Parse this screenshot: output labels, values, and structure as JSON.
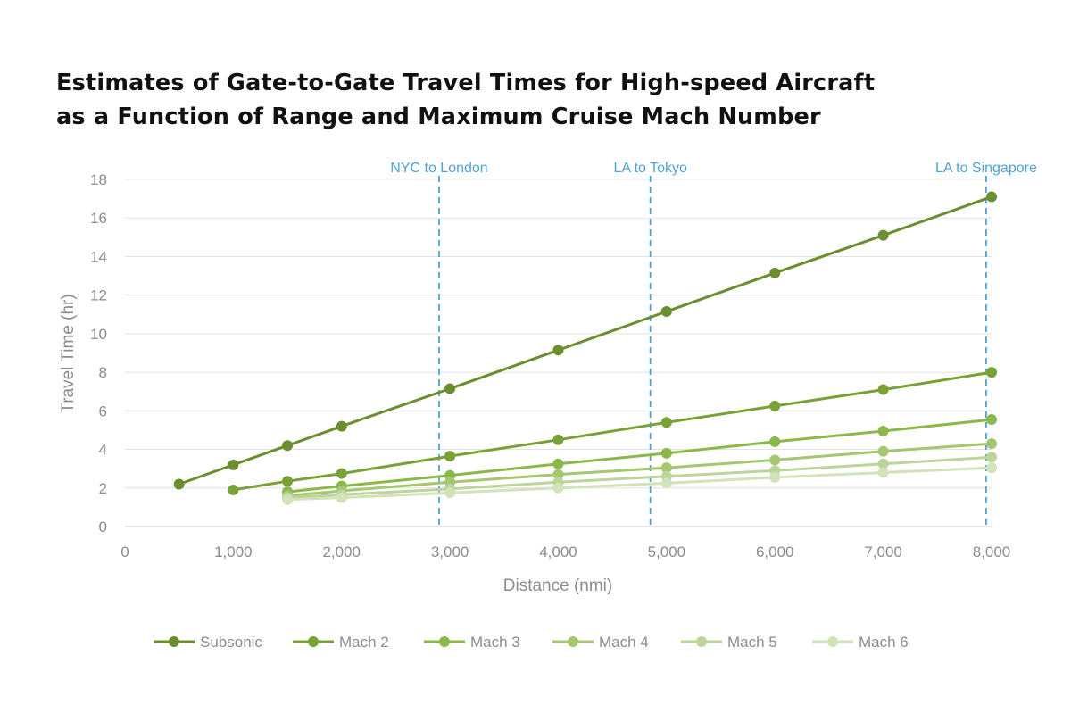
{
  "chart_data": {
    "type": "line",
    "title": "Estimates of Gate-to-Gate Travel Times for High-speed Aircraft as a Function of Range and Maximum Cruise Mach Number",
    "title_lines": [
      "Estimates of Gate-to-Gate Travel Times for High-speed Aircraft",
      "as a Function of Range and Maximum Cruise Mach Number"
    ],
    "xlabel": "Distance (nmi)",
    "ylabel": "Travel Time (hr)",
    "xlim": [
      0,
      8000
    ],
    "ylim": [
      0,
      18
    ],
    "x_ticks": [
      0,
      1000,
      2000,
      3000,
      4000,
      5000,
      6000,
      7000,
      8000
    ],
    "x_tick_labels": [
      "0",
      "1,000",
      "2,000",
      "3,000",
      "4,000",
      "5,000",
      "6,000",
      "7,000",
      "8,000"
    ],
    "y_ticks": [
      0,
      2,
      4,
      6,
      8,
      10,
      12,
      14,
      16,
      18
    ],
    "y_tick_labels": [
      "0",
      "2",
      "4",
      "6",
      "8",
      "10",
      "12",
      "14",
      "16",
      "18"
    ],
    "grid": "horizontal",
    "legend_position": "bottom",
    "annotations": [
      {
        "label": "NYC to London",
        "x": 2900
      },
      {
        "label": "LA to Tokyo",
        "x": 4850
      },
      {
        "label": "LA to Singapore",
        "x": 7950
      }
    ],
    "annotation_color": "#4fa3d9",
    "series": [
      {
        "name": "Subsonic",
        "color": "#6b8e2f",
        "x": [
          500,
          1000,
          1500,
          2000,
          3000,
          4000,
          5000,
          6000,
          7000,
          8000
        ],
        "y": [
          2.2,
          3.2,
          4.2,
          5.2,
          7.15,
          9.15,
          11.15,
          13.15,
          15.1,
          17.1
        ]
      },
      {
        "name": "Mach 2",
        "color": "#78a235",
        "x": [
          1000,
          1500,
          2000,
          3000,
          4000,
          5000,
          6000,
          7000,
          8000
        ],
        "y": [
          1.9,
          2.35,
          2.75,
          3.65,
          4.5,
          5.4,
          6.25,
          7.1,
          8.0
        ]
      },
      {
        "name": "Mach 3",
        "color": "#8ab84a",
        "x": [
          1500,
          2000,
          3000,
          4000,
          5000,
          6000,
          7000,
          8000
        ],
        "y": [
          1.8,
          2.1,
          2.65,
          3.25,
          3.8,
          4.4,
          4.95,
          5.55
        ]
      },
      {
        "name": "Mach 4",
        "color": "#a4c76f",
        "x": [
          1500,
          2000,
          3000,
          4000,
          5000,
          6000,
          7000,
          8000
        ],
        "y": [
          1.6,
          1.85,
          2.3,
          2.7,
          3.05,
          3.45,
          3.9,
          4.3
        ]
      },
      {
        "name": "Mach 5",
        "color": "#bcd59a",
        "x": [
          1500,
          2000,
          3000,
          4000,
          5000,
          6000,
          7000,
          8000
        ],
        "y": [
          1.5,
          1.65,
          1.95,
          2.3,
          2.6,
          2.9,
          3.25,
          3.6
        ]
      },
      {
        "name": "Mach 6",
        "color": "#d2e2bb",
        "x": [
          1500,
          2000,
          3000,
          4000,
          5000,
          6000,
          7000,
          8000
        ],
        "y": [
          1.4,
          1.5,
          1.75,
          2.0,
          2.25,
          2.55,
          2.8,
          3.05
        ]
      }
    ]
  }
}
